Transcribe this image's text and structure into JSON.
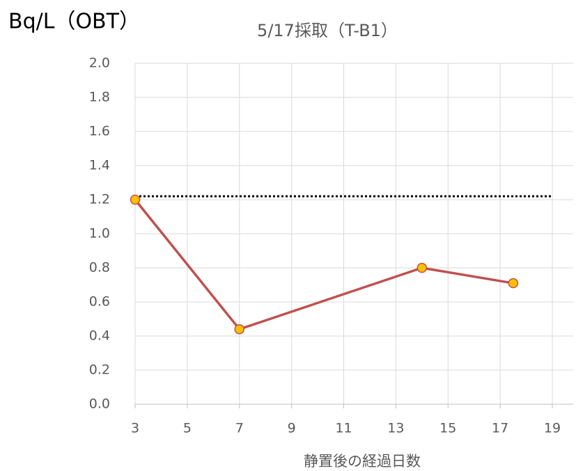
{
  "chart_data": {
    "type": "line",
    "title": "5/17採取（T-B1）",
    "y_label": "Bq/L（OBT）",
    "x_label": "静置後の経過日数",
    "x": [
      3,
      7,
      14,
      17.5
    ],
    "series": [
      {
        "color": "#c0504d",
        "marker_color": "#ffc000",
        "values": [
          1.2,
          0.44,
          0.8,
          0.71
        ]
      }
    ],
    "reference_line": {
      "value": 1.22,
      "color": "#000000"
    },
    "xlim": [
      3,
      19
    ],
    "xticks": [
      3,
      5,
      7,
      9,
      11,
      13,
      15,
      17,
      19
    ],
    "ylim": [
      0,
      2
    ],
    "yticks": [
      {
        "value": 0,
        "label": "0.0"
      },
      {
        "value": 0.2,
        "label": "0.2"
      },
      {
        "value": 0.4,
        "label": "0.4"
      },
      {
        "value": 0.6,
        "label": "0.6"
      },
      {
        "value": 0.8,
        "label": "0.8"
      },
      {
        "value": 1,
        "label": "1.0"
      },
      {
        "value": 1.2,
        "label": "1.2"
      },
      {
        "value": 1.4,
        "label": "1.4"
      },
      {
        "value": 1.6,
        "label": "1.6"
      },
      {
        "value": 1.8,
        "label": "1.8"
      },
      {
        "value": 2,
        "label": "2.0"
      }
    ],
    "grid": true
  }
}
